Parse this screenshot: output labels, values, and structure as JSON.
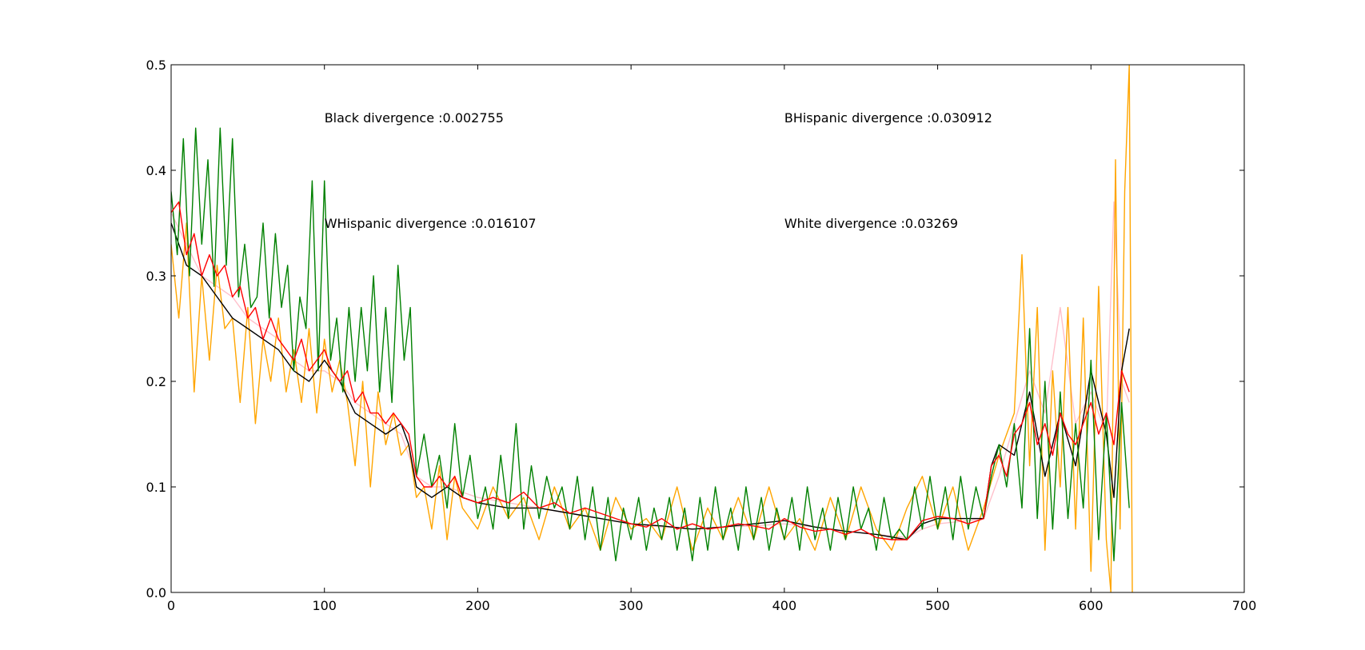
{
  "chart_data": {
    "type": "line",
    "xlim": [
      0,
      700
    ],
    "ylim": [
      0.0,
      0.5
    ],
    "xticks": [
      0,
      100,
      200,
      300,
      400,
      500,
      600,
      700
    ],
    "xtick_labels": [
      "0",
      "100",
      "200",
      "300",
      "400",
      "500",
      "600",
      "700"
    ],
    "yticks": [
      0.0,
      0.1,
      0.2,
      0.3,
      0.4,
      0.5
    ],
    "ytick_labels": [
      "0.0",
      "0.1",
      "0.2",
      "0.3",
      "0.4",
      "0.5"
    ],
    "grid": false,
    "legend": "none",
    "annotations": [
      {
        "text": "Black divergence :0.002755",
        "x": 100,
        "y": 0.45
      },
      {
        "text": "BHispanic divergence :0.030912",
        "x": 400,
        "y": 0.45
      },
      {
        "text": "WHispanic divergence :0.016107",
        "x": 100,
        "y": 0.35
      },
      {
        "text": "White divergence :0.03269",
        "x": 400,
        "y": 0.35
      }
    ],
    "series": [
      {
        "color": "#ffc0cb",
        "x": [
          0,
          10,
          20,
          30,
          40,
          50,
          60,
          70,
          80,
          90,
          100,
          110,
          120,
          130,
          140,
          150,
          160,
          170,
          180,
          190,
          200,
          220,
          240,
          260,
          280,
          300,
          320,
          340,
          360,
          380,
          400,
          420,
          440,
          460,
          480,
          490,
          500,
          520,
          530,
          540,
          550,
          560,
          570,
          580,
          590,
          600,
          610,
          615,
          620,
          625
        ],
        "y": [
          0.36,
          0.33,
          0.3,
          0.29,
          0.28,
          0.26,
          0.25,
          0.24,
          0.22,
          0.21,
          0.21,
          0.2,
          0.18,
          0.17,
          0.16,
          0.15,
          0.11,
          0.1,
          0.1,
          0.095,
          0.09,
          0.085,
          0.08,
          0.075,
          0.07,
          0.065,
          0.062,
          0.06,
          0.062,
          0.063,
          0.065,
          0.062,
          0.058,
          0.055,
          0.052,
          0.06,
          0.065,
          0.068,
          0.07,
          0.11,
          0.16,
          0.21,
          0.17,
          0.27,
          0.16,
          0.19,
          0.15,
          0.37,
          0.2,
          0.18
        ]
      },
      {
        "color": "#ffa500",
        "x": [
          0,
          5,
          10,
          15,
          20,
          25,
          30,
          35,
          40,
          45,
          50,
          55,
          60,
          65,
          70,
          75,
          80,
          85,
          90,
          95,
          100,
          105,
          110,
          115,
          120,
          125,
          130,
          135,
          140,
          145,
          150,
          155,
          160,
          165,
          170,
          175,
          180,
          185,
          190,
          200,
          210,
          220,
          230,
          240,
          250,
          260,
          270,
          280,
          290,
          300,
          310,
          320,
          330,
          340,
          350,
          360,
          370,
          380,
          390,
          400,
          410,
          420,
          430,
          440,
          450,
          460,
          470,
          480,
          490,
          500,
          510,
          520,
          530,
          540,
          550,
          555,
          560,
          565,
          570,
          575,
          580,
          585,
          590,
          595,
          600,
          605,
          610,
          613,
          616,
          619,
          622,
          625,
          627
        ],
        "y": [
          0.33,
          0.26,
          0.35,
          0.19,
          0.3,
          0.22,
          0.31,
          0.25,
          0.26,
          0.18,
          0.27,
          0.16,
          0.24,
          0.2,
          0.26,
          0.19,
          0.23,
          0.18,
          0.25,
          0.17,
          0.24,
          0.19,
          0.22,
          0.18,
          0.12,
          0.2,
          0.1,
          0.19,
          0.14,
          0.17,
          0.13,
          0.14,
          0.09,
          0.1,
          0.06,
          0.12,
          0.05,
          0.11,
          0.08,
          0.06,
          0.1,
          0.07,
          0.09,
          0.05,
          0.1,
          0.06,
          0.08,
          0.04,
          0.09,
          0.06,
          0.07,
          0.05,
          0.1,
          0.04,
          0.08,
          0.05,
          0.09,
          0.05,
          0.1,
          0.05,
          0.07,
          0.04,
          0.09,
          0.05,
          0.1,
          0.06,
          0.04,
          0.08,
          0.11,
          0.06,
          0.1,
          0.04,
          0.08,
          0.13,
          0.17,
          0.32,
          0.12,
          0.27,
          0.04,
          0.21,
          0.1,
          0.27,
          0.06,
          0.26,
          0.02,
          0.29,
          0.05,
          0.0,
          0.41,
          0.06,
          0.38,
          0.5,
          0.0
        ]
      },
      {
        "color": "#000000",
        "x": [
          0,
          10,
          20,
          30,
          40,
          50,
          60,
          70,
          80,
          90,
          100,
          110,
          120,
          130,
          140,
          150,
          155,
          160,
          170,
          180,
          190,
          200,
          220,
          240,
          260,
          280,
          300,
          320,
          340,
          360,
          380,
          400,
          420,
          440,
          460,
          480,
          490,
          500,
          520,
          530,
          535,
          540,
          550,
          560,
          570,
          580,
          590,
          600,
          610,
          615,
          620,
          625
        ],
        "y": [
          0.35,
          0.31,
          0.3,
          0.28,
          0.26,
          0.25,
          0.24,
          0.23,
          0.21,
          0.2,
          0.22,
          0.2,
          0.17,
          0.16,
          0.15,
          0.16,
          0.14,
          0.1,
          0.09,
          0.1,
          0.09,
          0.085,
          0.08,
          0.08,
          0.075,
          0.07,
          0.065,
          0.063,
          0.06,
          0.062,
          0.065,
          0.068,
          0.062,
          0.058,
          0.055,
          0.05,
          0.065,
          0.07,
          0.07,
          0.07,
          0.12,
          0.14,
          0.13,
          0.19,
          0.11,
          0.17,
          0.12,
          0.21,
          0.15,
          0.09,
          0.21,
          0.25
        ]
      },
      {
        "color": "#008000",
        "x": [
          0,
          4,
          8,
          12,
          16,
          20,
          24,
          28,
          32,
          36,
          40,
          44,
          48,
          52,
          56,
          60,
          64,
          68,
          72,
          76,
          80,
          84,
          88,
          92,
          96,
          100,
          104,
          108,
          112,
          116,
          120,
          124,
          128,
          132,
          136,
          140,
          144,
          148,
          152,
          156,
          160,
          165,
          170,
          175,
          180,
          185,
          190,
          195,
          200,
          205,
          210,
          215,
          220,
          225,
          230,
          235,
          240,
          245,
          250,
          255,
          260,
          265,
          270,
          275,
          280,
          285,
          290,
          295,
          300,
          305,
          310,
          315,
          320,
          325,
          330,
          335,
          340,
          345,
          350,
          355,
          360,
          365,
          370,
          375,
          380,
          385,
          390,
          395,
          400,
          405,
          410,
          415,
          420,
          425,
          430,
          435,
          440,
          445,
          450,
          455,
          460,
          465,
          470,
          475,
          480,
          485,
          490,
          495,
          500,
          505,
          510,
          515,
          520,
          525,
          530,
          535,
          540,
          545,
          550,
          555,
          560,
          565,
          570,
          575,
          580,
          585,
          590,
          595,
          600,
          605,
          610,
          615,
          620,
          625
        ],
        "y": [
          0.38,
          0.32,
          0.43,
          0.3,
          0.44,
          0.33,
          0.41,
          0.29,
          0.44,
          0.31,
          0.43,
          0.28,
          0.33,
          0.27,
          0.28,
          0.35,
          0.26,
          0.34,
          0.27,
          0.31,
          0.21,
          0.28,
          0.25,
          0.39,
          0.21,
          0.39,
          0.22,
          0.26,
          0.19,
          0.27,
          0.2,
          0.27,
          0.21,
          0.3,
          0.19,
          0.27,
          0.18,
          0.31,
          0.22,
          0.27,
          0.11,
          0.15,
          0.1,
          0.13,
          0.08,
          0.16,
          0.09,
          0.13,
          0.07,
          0.1,
          0.06,
          0.13,
          0.07,
          0.16,
          0.06,
          0.12,
          0.07,
          0.11,
          0.08,
          0.1,
          0.06,
          0.11,
          0.05,
          0.1,
          0.04,
          0.09,
          0.03,
          0.08,
          0.05,
          0.09,
          0.04,
          0.08,
          0.05,
          0.09,
          0.04,
          0.08,
          0.03,
          0.09,
          0.04,
          0.1,
          0.05,
          0.08,
          0.04,
          0.1,
          0.05,
          0.09,
          0.04,
          0.08,
          0.05,
          0.09,
          0.04,
          0.1,
          0.05,
          0.08,
          0.04,
          0.09,
          0.05,
          0.1,
          0.06,
          0.08,
          0.04,
          0.09,
          0.05,
          0.06,
          0.05,
          0.1,
          0.06,
          0.11,
          0.06,
          0.1,
          0.05,
          0.11,
          0.06,
          0.1,
          0.07,
          0.11,
          0.14,
          0.1,
          0.16,
          0.08,
          0.25,
          0.07,
          0.2,
          0.06,
          0.19,
          0.07,
          0.16,
          0.08,
          0.22,
          0.05,
          0.17,
          0.03,
          0.18,
          0.08
        ]
      },
      {
        "color": "#ff0000",
        "x": [
          0,
          5,
          10,
          15,
          20,
          25,
          30,
          35,
          40,
          45,
          50,
          55,
          60,
          65,
          70,
          75,
          80,
          85,
          90,
          95,
          100,
          105,
          110,
          115,
          120,
          125,
          130,
          135,
          140,
          145,
          150,
          155,
          160,
          165,
          170,
          175,
          180,
          185,
          190,
          200,
          210,
          220,
          230,
          240,
          250,
          260,
          270,
          280,
          290,
          300,
          310,
          320,
          330,
          340,
          350,
          360,
          370,
          380,
          390,
          400,
          410,
          420,
          430,
          440,
          450,
          460,
          470,
          480,
          490,
          500,
          510,
          520,
          530,
          535,
          540,
          545,
          550,
          555,
          560,
          565,
          570,
          575,
          580,
          585,
          590,
          595,
          600,
          605,
          610,
          615,
          620,
          625
        ],
        "y": [
          0.36,
          0.37,
          0.32,
          0.34,
          0.3,
          0.32,
          0.3,
          0.31,
          0.28,
          0.29,
          0.26,
          0.27,
          0.24,
          0.26,
          0.24,
          0.23,
          0.22,
          0.24,
          0.21,
          0.22,
          0.23,
          0.21,
          0.2,
          0.21,
          0.18,
          0.19,
          0.17,
          0.17,
          0.16,
          0.17,
          0.16,
          0.15,
          0.11,
          0.1,
          0.1,
          0.11,
          0.1,
          0.11,
          0.09,
          0.085,
          0.09,
          0.085,
          0.095,
          0.08,
          0.085,
          0.075,
          0.08,
          0.075,
          0.07,
          0.065,
          0.062,
          0.07,
          0.06,
          0.065,
          0.06,
          0.062,
          0.065,
          0.063,
          0.06,
          0.07,
          0.062,
          0.058,
          0.06,
          0.055,
          0.06,
          0.052,
          0.05,
          0.05,
          0.068,
          0.072,
          0.07,
          0.065,
          0.07,
          0.12,
          0.13,
          0.11,
          0.15,
          0.16,
          0.18,
          0.14,
          0.16,
          0.13,
          0.17,
          0.15,
          0.14,
          0.16,
          0.18,
          0.15,
          0.17,
          0.14,
          0.21,
          0.19
        ]
      }
    ]
  }
}
